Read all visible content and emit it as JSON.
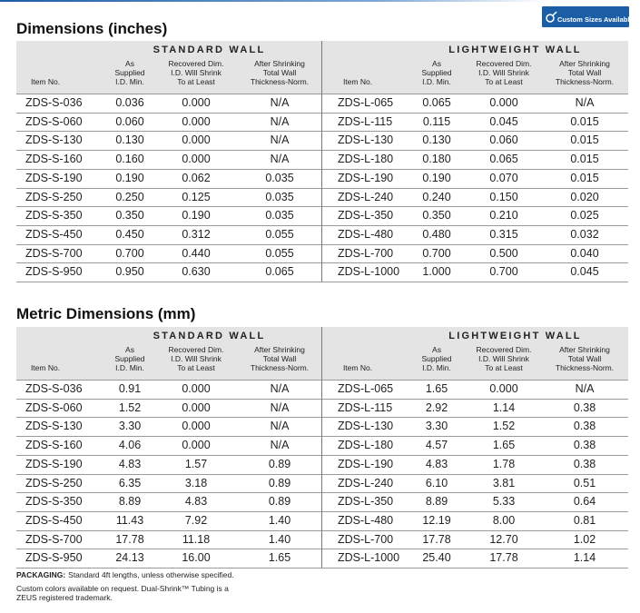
{
  "badge": "Custom Sizes Available",
  "sections": [
    {
      "title": "Dimensions (inches)",
      "groups": [
        {
          "name": "STANDARD WALL",
          "columns": [
            [
              "Item No."
            ],
            [
              "As",
              "Supplied",
              "I.D. Min."
            ],
            [
              "Recovered Dim.",
              "I.D. Will Shrink",
              "To at Least"
            ],
            [
              "After Shrinking",
              "Total Wall",
              "Thickness-Norm."
            ]
          ]
        },
        {
          "name": "LIGHTWEIGHT WALL",
          "columns": [
            [
              "Item No."
            ],
            [
              "As",
              "Supplied",
              "I.D. Min."
            ],
            [
              "Recovered Dim.",
              "I.D. Will Shrink",
              "To at Least"
            ],
            [
              "After Shrinking",
              "Total Wall",
              "Thickness-Norm."
            ]
          ]
        }
      ],
      "rows": [
        [
          "ZDS-S-036",
          "0.036",
          "0.000",
          "N/A",
          "ZDS-L-065",
          "0.065",
          "0.000",
          "N/A"
        ],
        [
          "ZDS-S-060",
          "0.060",
          "0.000",
          "N/A",
          "ZDS-L-115",
          "0.115",
          "0.045",
          "0.015"
        ],
        [
          "ZDS-S-130",
          "0.130",
          "0.000",
          "N/A",
          "ZDS-L-130",
          "0.130",
          "0.060",
          "0.015"
        ],
        [
          "ZDS-S-160",
          "0.160",
          "0.000",
          "N/A",
          "ZDS-L-180",
          "0.180",
          "0.065",
          "0.015"
        ],
        [
          "ZDS-S-190",
          "0.190",
          "0.062",
          "0.035",
          "ZDS-L-190",
          "0.190",
          "0.070",
          "0.015"
        ],
        [
          "ZDS-S-250",
          "0.250",
          "0.125",
          "0.035",
          "ZDS-L-240",
          "0.240",
          "0.150",
          "0.020"
        ],
        [
          "ZDS-S-350",
          "0.350",
          "0.190",
          "0.035",
          "ZDS-L-350",
          "0.350",
          "0.210",
          "0.025"
        ],
        [
          "ZDS-S-450",
          "0.450",
          "0.312",
          "0.055",
          "ZDS-L-480",
          "0.480",
          "0.315",
          "0.032"
        ],
        [
          "ZDS-S-700",
          "0.700",
          "0.440",
          "0.055",
          "ZDS-L-700",
          "0.700",
          "0.500",
          "0.040"
        ],
        [
          "ZDS-S-950",
          "0.950",
          "0.630",
          "0.065",
          "ZDS-L-1000",
          "1.000",
          "0.700",
          "0.045"
        ]
      ]
    },
    {
      "title": "Metric Dimensions (mm)",
      "groups": [
        {
          "name": "STANDARD WALL",
          "columns": [
            [
              "Item No."
            ],
            [
              "As",
              "Supplied",
              "I.D. Min."
            ],
            [
              "Recovered Dim.",
              "I.D. Will Shrink",
              "To at Least"
            ],
            [
              "After Shrinking",
              "Total Wall",
              "Thickness-Norm."
            ]
          ]
        },
        {
          "name": "LIGHTWEIGHT WALL",
          "columns": [
            [
              "Item No."
            ],
            [
              "As",
              "Supplied",
              "I.D. Min."
            ],
            [
              "Recovered Dim.",
              "I.D. Will Shrink",
              "To at Least"
            ],
            [
              "After Shrinking",
              "Total Wall",
              "Thickness-Norm."
            ]
          ]
        }
      ],
      "rows": [
        [
          "ZDS-S-036",
          "0.91",
          "0.000",
          "N/A",
          "ZDS-L-065",
          "1.65",
          "0.000",
          "N/A"
        ],
        [
          "ZDS-S-060",
          "1.52",
          "0.000",
          "N/A",
          "ZDS-L-115",
          "2.92",
          "1.14",
          "0.38"
        ],
        [
          "ZDS-S-130",
          "3.30",
          "0.000",
          "N/A",
          "ZDS-L-130",
          "3.30",
          "1.52",
          "0.38"
        ],
        [
          "ZDS-S-160",
          "4.06",
          "0.000",
          "N/A",
          "ZDS-L-180",
          "4.57",
          "1.65",
          "0.38"
        ],
        [
          "ZDS-S-190",
          "4.83",
          "1.57",
          "0.89",
          "ZDS-L-190",
          "4.83",
          "1.78",
          "0.38"
        ],
        [
          "ZDS-S-250",
          "6.35",
          "3.18",
          "0.89",
          "ZDS-L-240",
          "6.10",
          "3.81",
          "0.51"
        ],
        [
          "ZDS-S-350",
          "8.89",
          "4.83",
          "0.89",
          "ZDS-L-350",
          "8.89",
          "5.33",
          "0.64"
        ],
        [
          "ZDS-S-450",
          "11.43",
          "7.92",
          "1.40",
          "ZDS-L-480",
          "12.19",
          "8.00",
          "0.81"
        ],
        [
          "ZDS-S-700",
          "17.78",
          "11.18",
          "1.40",
          "ZDS-L-700",
          "17.78",
          "12.70",
          "1.02"
        ],
        [
          "ZDS-S-950",
          "24.13",
          "16.00",
          "1.65",
          "ZDS-L-1000",
          "25.40",
          "17.78",
          "1.14"
        ]
      ]
    }
  ],
  "footer": {
    "packaging_label": "PACKAGING:",
    "packaging_text": "Standard 4ft lengths, unless otherwise specified.",
    "note": [
      "Custom colors available on request. Dual-Shrink™ Tubing is a",
      "ZEUS registered trademark."
    ]
  }
}
